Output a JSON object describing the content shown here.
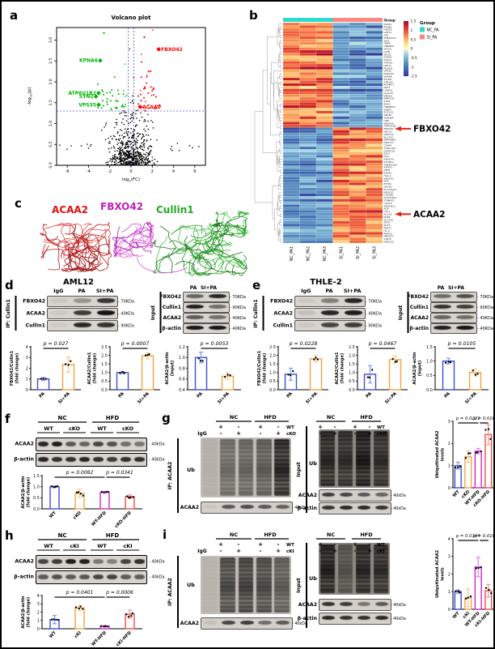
{
  "figure": {
    "panels": [
      "a",
      "b",
      "c",
      "d",
      "e",
      "f",
      "g",
      "h",
      "i"
    ]
  },
  "colors": {
    "bar_outline": [
      "#3A4FD8",
      "#F2A444",
      "#CC29CC",
      "#E8514A"
    ],
    "bar_error": [
      "#8FA0F0",
      "#F7CD96",
      "#E891E8",
      "#F2A19E"
    ],
    "volcano_up": "#FF0000",
    "volcano_down": "#00B400",
    "nc_pa": "#2ED9CD",
    "si_pa": "#F9897D",
    "arrow": "#E8250F",
    "threshold_line": "#5555DD"
  },
  "panel_a": {
    "chart_data": {
      "type": "scatter",
      "title": "Volcano plot",
      "xlabel": "log2(FC)",
      "ylabel": "-log10(p)",
      "xlim": [
        -7,
        7
      ],
      "ylim": [
        0,
        3.3
      ],
      "xticks": [
        -6,
        -4,
        -2,
        0,
        2,
        4,
        6
      ],
      "yticks": [
        0,
        0.5,
        1,
        1.5,
        2,
        2.5,
        3
      ],
      "thresholds": {
        "x": [
          -0.26,
          0.26
        ],
        "y": 1.3
      },
      "point_colors": {
        "up": "#FF0000",
        "down": "#00B400",
        "ns": "#000000"
      },
      "labeled_points": [
        {
          "gene": "FBXO42",
          "x": 2.6,
          "y": 2.78,
          "color": "red",
          "label_side": "right"
        },
        {
          "gene": "ACAA2",
          "x": 0.85,
          "y": 1.4,
          "color": "red",
          "label_side": "right"
        },
        {
          "gene": "KPNA6",
          "x": -2.9,
          "y": 2.51,
          "color": "green",
          "label_side": "left"
        },
        {
          "gene": "ATP6V1B2",
          "x": -3.05,
          "y": 1.73,
          "color": "green",
          "label_side": "left"
        },
        {
          "gene": "SYN2",
          "x": -3.3,
          "y": 1.65,
          "color": "green",
          "label_side": "left"
        },
        {
          "gene": "VPS35",
          "x": -3.05,
          "y": 1.45,
          "color": "green",
          "label_side": "left"
        }
      ]
    }
  },
  "panel_b": {
    "chart_data": {
      "type": "heatmap",
      "annotation_title": "Group",
      "legend_title": "Group",
      "col_labels": [
        "NC_PA1",
        "NC_PA2",
        "NC_PA3",
        "SI_PA1",
        "SI_PA2",
        "SI_PA3"
      ],
      "groups": [
        {
          "name": "NC_PA",
          "color": "#2ED9CD"
        },
        {
          "name": "SI_PA",
          "color": "#F9897D"
        }
      ],
      "colorbar_ticks": [
        "1.5",
        "1",
        "0.5",
        "0",
        "-0.5",
        "-1",
        "-1.5"
      ],
      "si_up_from": 38,
      "row_labels": [
        "RSRP1",
        "PSMB1",
        "HARS2",
        "GFPT1",
        "NSF",
        "TMEM109",
        "ABI1",
        "TMPO",
        "HNRNPD",
        "AP1G1",
        "GLTN",
        "SRGN",
        "DARS1",
        "STAU1",
        "ATP5A1",
        "LRP11",
        "POLR2L",
        "VPS35",
        "MARCKS",
        "SNRPB",
        "IFITM2",
        "ATP1A2",
        "PGRMC1",
        "ARF3",
        "USMG5",
        "LGALS3",
        "KPNA6",
        "RPRD1B",
        "SYN2",
        "ENO2",
        "HNRNPA3",
        "SSBP1",
        "SUCLG1",
        "ABCB7",
        "TARDBP",
        "CKB",
        "NDUFA8",
        "ATP6V1B2",
        "FBXO42",
        "ABCG2",
        "NDUFA2",
        "SLC7A5",
        "SERPINB4",
        "NDUFV1",
        "CKAP4",
        "TOR1AIP1",
        "GATAD2A",
        "RAC3",
        "FIS1",
        "NDUFS4",
        "STOML2",
        "TMEM126A",
        "ATP5F1",
        "IMMT",
        "RAB5C",
        "HLA-C",
        "NDUFS2",
        "SFN",
        "ETHE1",
        "DECR1",
        "SLC25A24",
        "NDUFS7",
        "COX6B1",
        "ALDH18A1",
        "TOMM22",
        "COX15",
        "NDUFB13",
        "AGK",
        "CYC1",
        "ACAA2",
        "PHB2",
        "SLC7A8",
        "MCAT",
        "SDC3",
        "PNPT1",
        "H1-0",
        "PMPCA",
        "MBOAT7",
        "CISD3",
        "MRPS22"
      ],
      "highlighted": [
        {
          "gene": "FBXO42",
          "row": 38
        },
        {
          "gene": "ACAA2",
          "row": 69
        }
      ]
    }
  },
  "panel_c": {
    "labels": [
      {
        "text": "ACAA2",
        "color": "#DD1111"
      },
      {
        "text": "FBXO42",
        "color": "#BB22BB"
      },
      {
        "text": "Cullin1",
        "color": "#22AA22"
      }
    ]
  },
  "panel_d": {
    "title": "AML12",
    "ip_label": "IP: Cullin1",
    "input_label": "Input",
    "ip_lanes": [
      "IgG",
      "PA",
      "SI+PA"
    ],
    "ip_rows": [
      {
        "label": "FBXO42",
        "size": "70KDa",
        "bands": [
          0.06,
          0.3,
          0.78
        ]
      },
      {
        "label": "ACAA2",
        "size": "40KDa",
        "bands": [
          0.05,
          0.75,
          0.95
        ]
      },
      {
        "label": "Cullin1",
        "size": "90KDa",
        "bands": [
          0.04,
          0.85,
          0.8
        ]
      }
    ],
    "input_lanes": [
      "PA",
      "SI+PA"
    ],
    "input_rows": [
      {
        "label": "FBXO42",
        "size": "70KDa",
        "bands": [
          0.55,
          0.85
        ]
      },
      {
        "label": "Cullin1",
        "size": "90KDa",
        "bands": [
          0.9,
          0.5
        ]
      },
      {
        "label": "ACAA2",
        "size": "40KDa",
        "bands": [
          0.6,
          0.5
        ]
      },
      {
        "label": "β-actin",
        "size": "40KDa",
        "bands": [
          0.95,
          0.95
        ]
      }
    ],
    "charts": [
      {
        "type": "bar",
        "ylabel": [
          "FBXO42/Cullin1",
          "(fold change)"
        ],
        "categories": [
          "PA",
          "SI+PA"
        ],
        "values": [
          1.0,
          2.35
        ],
        "errors": [
          0.15,
          0.7
        ],
        "ymin": 0,
        "ymax": 4,
        "yticks": [
          0,
          1,
          2,
          3,
          4
        ],
        "p": [
          "p = 0.027"
        ]
      },
      {
        "type": "bar",
        "ylabel": [
          "ACAA2/Cullin1",
          "(fold change)"
        ],
        "categories": [
          "PA",
          "SI+PA"
        ],
        "values": [
          1.0,
          1.97
        ],
        "errors": [
          0.06,
          0.17
        ],
        "ymin": 0,
        "ymax": 2.5,
        "yticks": [
          0,
          0.5,
          1,
          1.5,
          2,
          2.5
        ],
        "p": [
          "p = 0.0007"
        ]
      },
      {
        "type": "bar",
        "ylabel": [
          "ACAA2/β-actin",
          "(Input)"
        ],
        "categories": [
          "PA",
          "SI+PA"
        ],
        "values": [
          1.0,
          0.65
        ],
        "errors": [
          0.1,
          0.06
        ],
        "ymin": 0.4,
        "ymax": 1.2,
        "yticks": [
          0.4,
          0.6,
          0.8,
          1,
          1.2
        ],
        "p": [
          "p = 0.0053"
        ]
      }
    ]
  },
  "panel_e": {
    "title": "THLE-2",
    "ip_label": "IP: Cullin1",
    "input_label": "Input",
    "ip_lanes": [
      "IgG",
      "PA",
      "SI+PA"
    ],
    "ip_rows": [
      {
        "label": "FBXO42",
        "size": "70KDa",
        "bands": [
          0.06,
          0.4,
          0.85
        ]
      },
      {
        "label": "ACAA2",
        "size": "40KDa",
        "bands": [
          0.1,
          0.85,
          0.9
        ]
      },
      {
        "label": "Cullin1",
        "size": "90KDa",
        "bands": [
          0.05,
          0.7,
          0.75
        ]
      }
    ],
    "input_lanes": [
      "PA",
      "SI+PA"
    ],
    "input_rows": [
      {
        "label": "FBXO42",
        "size": "70KDa",
        "bands": [
          0.5,
          0.65
        ]
      },
      {
        "label": "Cullin1",
        "size": "90KDa",
        "bands": [
          0.8,
          0.75
        ]
      },
      {
        "label": "ACAA2",
        "size": "40KDa",
        "bands": [
          0.55,
          0.5
        ]
      },
      {
        "label": "β-actin",
        "size": "40KDa",
        "bands": [
          0.9,
          0.95
        ]
      }
    ],
    "charts": [
      {
        "type": "bar",
        "ylabel": [
          "FBXO42/Cullin1",
          "(fold change)"
        ],
        "categories": [
          "PA",
          "SI+PA"
        ],
        "values": [
          0.9,
          1.8
        ],
        "errors": [
          0.35,
          0.18
        ],
        "ymin": 0,
        "ymax": 2.5,
        "yticks": [
          0,
          0.5,
          1,
          1.5,
          2,
          2.5
        ],
        "p": [
          "p = 0.0228"
        ]
      },
      {
        "type": "bar",
        "ylabel": [
          "ACAA2/Cullin1",
          "(fold change)"
        ],
        "categories": [
          "PA",
          "SI+PA"
        ],
        "values": [
          0.9,
          1.75
        ],
        "errors": [
          0.5,
          0.2
        ],
        "ymin": 0,
        "ymax": 2.5,
        "yticks": [
          0,
          0.5,
          1,
          1.5,
          2,
          2.5
        ],
        "p": [
          "p = 0.0467"
        ]
      },
      {
        "type": "bar",
        "ylabel": [
          "ACAA2/β-actin",
          "(Input)"
        ],
        "categories": [
          "PA",
          "SI+PA"
        ],
        "values": [
          1.0,
          0.6
        ],
        "errors": [
          0.1,
          0.12
        ],
        "ymin": 0,
        "ymax": 1.5,
        "yticks": [
          0,
          0.5,
          1,
          1.5
        ],
        "p": [
          "p = 0.0105"
        ]
      }
    ]
  },
  "panel_f": {
    "group_headers": [
      "NC",
      "HFD"
    ],
    "lane_headers": [
      "WT",
      "cKO",
      "WT",
      "cKO"
    ],
    "rows": [
      {
        "label": "ACAA2",
        "size": "40kDa",
        "bands": [
          0.85,
          0.9,
          0.6,
          0.55,
          0.7,
          0.65,
          0.5,
          0.45
        ]
      },
      {
        "label": "β-actin",
        "size": "40kDa",
        "bands": [
          0.85,
          0.8,
          0.8,
          0.85,
          0.8,
          0.75,
          0.8,
          0.8
        ]
      }
    ],
    "chart": {
      "type": "bar",
      "ylabel": [
        "ACAA2/β-actin",
        "(fold change)"
      ],
      "categories": [
        "WT",
        "cKO",
        "WT-HFD",
        "cKO-HFD"
      ],
      "values": [
        1.0,
        0.7,
        0.75,
        0.55
      ],
      "errors": [
        0.04,
        0.18,
        0.04,
        0.08
      ],
      "ymin": 0,
      "ymax": 1.5,
      "yticks": [
        0,
        0.5,
        1,
        1.5
      ],
      "p": [
        "p = 0.0082",
        "p = 0.0341"
      ]
    }
  },
  "panel_g": {
    "ip_label": "IP: ACAA2",
    "input_label": "Input",
    "ub_label": "Ub",
    "igg_label": "IgG",
    "group_headers": [
      "NC",
      "HFD"
    ],
    "pm_rows": [
      {
        "label": "WT",
        "signs": [
          "+",
          "-",
          "+",
          "-"
        ]
      },
      {
        "label": "cKO",
        "signs": [
          "-",
          "+",
          "-",
          "+"
        ]
      }
    ],
    "ip_row_label": "ACAA2",
    "acaa2_size": "40kDa",
    "ip_smear_lanes": [
      0.08,
      0.5,
      0.55,
      0.6,
      0.9
    ],
    "ip_acaa2_bands": [
      0.05,
      0.6,
      0.65,
      0.6,
      0.55
    ],
    "input_smear_lanes": [
      0.85,
      0.8,
      0.95,
      0.8
    ],
    "input_rows": [
      {
        "label": "ACAA2",
        "size": "40kDa",
        "bands": [
          0.75,
          0.7,
          0.6,
          0.55
        ]
      },
      {
        "label": "β-actin",
        "size": "40kDa",
        "bands": [
          0.8,
          0.85,
          0.85,
          0.8
        ]
      }
    ],
    "chart": {
      "type": "bar",
      "ylabel": [
        "Ubiquitinated ACAA2",
        "levels"
      ],
      "categories": [
        "WT",
        "cKO",
        "WT-HFD",
        "cKO-HFD"
      ],
      "values": [
        1.0,
        1.4,
        1.65,
        2.4
      ],
      "errors": [
        0.15,
        0.25,
        0.12,
        0.45
      ],
      "ymin": 0,
      "ymax": 3,
      "yticks": [
        0,
        1,
        2,
        3
      ],
      "p": [
        "p = 0.0221",
        "p = 0.0165"
      ]
    }
  },
  "panel_h": {
    "group_headers": [
      "NC",
      "HFD"
    ],
    "lane_headers": [
      "WT",
      "cKI",
      "WT",
      "cKI"
    ],
    "rows": [
      {
        "label": "ACAA2",
        "size": "40kDa",
        "bands": [
          0.7,
          0.75,
          0.9,
          0.88,
          0.45,
          0.4,
          0.7,
          0.8
        ]
      },
      {
        "label": "β-actin",
        "size": "40kDa",
        "bands": [
          0.6,
          0.65,
          0.6,
          0.62,
          0.7,
          0.72,
          0.6,
          0.58
        ]
      }
    ],
    "chart": {
      "type": "bar",
      "ylabel": [
        "ACAA2/β-actin",
        "(fold change)"
      ],
      "categories": [
        "WT",
        "cKI",
        "WT-HFD",
        "cKI-HFD"
      ],
      "values": [
        1.1,
        2.5,
        0.3,
        1.75
      ],
      "errors": [
        0.5,
        0.3,
        0.08,
        0.5
      ],
      "ymin": 0,
      "ymax": 4,
      "yticks": [
        0,
        1,
        2,
        3,
        4
      ],
      "p": [
        "p = 0.0401",
        "p = 0.0006"
      ]
    }
  },
  "panel_i": {
    "ip_label": "IP: ACAA2",
    "input_label": "Input",
    "ub_label": "Ub",
    "igg_label": "IgG",
    "group_headers": [
      "NC",
      "HFD"
    ],
    "pm_rows": [
      {
        "label": "WT",
        "signs": [
          "+",
          "-",
          "+",
          "-"
        ]
      },
      {
        "label": "cKI",
        "signs": [
          "-",
          "+",
          "-",
          "+"
        ]
      }
    ],
    "ip_row_label": "ACAA2",
    "acaa2_size": "40kDa",
    "ip_smear_lanes": [
      0.06,
      0.7,
      0.75,
      0.7,
      0.6
    ],
    "ip_acaa2_bands": [
      0.08,
      0.7,
      0.75,
      0.5,
      0.6
    ],
    "input_smear_lanes": [
      0.9,
      0.5,
      0.85,
      0.8
    ],
    "input_rows": [
      {
        "label": "ACAA2",
        "size": "40kDa",
        "bands": [
          0.8,
          0.75,
          0.45,
          0.6
        ]
      },
      {
        "label": "β-actin",
        "size": "40kDa",
        "bands": [
          0.85,
          0.8,
          0.8,
          0.85
        ]
      }
    ],
    "chart": {
      "type": "bar",
      "ylabel": [
        "Ubiquitinated ACAA2",
        "levels"
      ],
      "categories": [
        "WT",
        "cKI",
        "WT-HFD",
        "cKI-HFD"
      ],
      "values": [
        1.0,
        0.65,
        2.4,
        1.05
      ],
      "errors": [
        0.1,
        0.5,
        0.55,
        0.35
      ],
      "ymin": 0,
      "ymax": 4,
      "yticks": [
        0,
        1,
        2,
        3,
        4
      ],
      "p": [
        "p = 0.0144",
        "p = 0.0167"
      ]
    }
  }
}
